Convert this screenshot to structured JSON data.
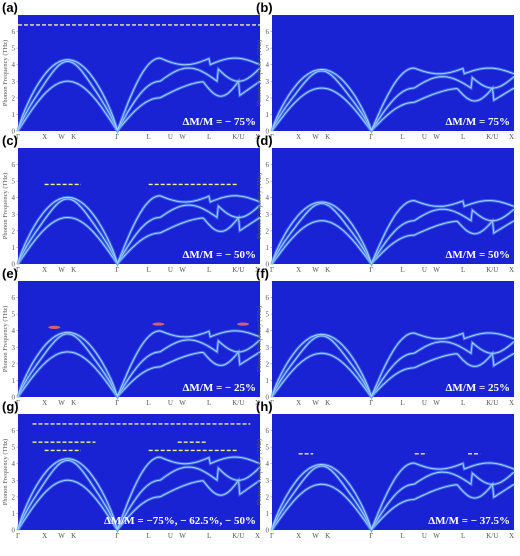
{
  "chart_data": [
    {
      "type": "line",
      "panel_label": "(a)",
      "annotation": "ΔM/M = − 75%",
      "mass_change": -0.75,
      "flat_bands": [
        {
          "x": [
            0,
            10
          ],
          "y": 6.4
        }
      ],
      "hot": false
    },
    {
      "type": "line",
      "panel_label": "(b)",
      "annotation": "ΔM/M = 75%",
      "mass_change": 0.75,
      "flat_bands": [],
      "hot": false
    },
    {
      "type": "line",
      "panel_label": "(c)",
      "annotation": "ΔM/M = − 50%",
      "mass_change": -0.5,
      "flat_bands": [
        {
          "x": [
            1.1,
            2.6
          ],
          "y": 4.8
        },
        {
          "x": [
            5.4,
            9.1
          ],
          "y": 4.8
        }
      ],
      "hot": false
    },
    {
      "type": "line",
      "panel_label": "(d)",
      "annotation": "ΔM/M = 50%",
      "mass_change": 0.5,
      "flat_bands": [],
      "hot": false
    },
    {
      "type": "line",
      "panel_label": "(e)",
      "annotation": "ΔM/M = − 25%",
      "mass_change": -0.25,
      "flat_bands": [],
      "hot": true
    },
    {
      "type": "line",
      "panel_label": "(f)",
      "annotation": "ΔM/M = 25%",
      "mass_change": 0.25,
      "flat_bands": [],
      "hot": false
    },
    {
      "type": "line",
      "panel_label": "(g)",
      "annotation": "ΔM/M = −75%, − 62.5%, − 50%",
      "mass_change": -0.75,
      "flat_bands": [
        {
          "x": [
            0.6,
            9.6
          ],
          "y": 6.4
        },
        {
          "x": [
            0.6,
            3.2
          ],
          "y": 5.3
        },
        {
          "x": [
            6.6,
            7.8
          ],
          "y": 5.3
        },
        {
          "x": [
            1.1,
            2.6
          ],
          "y": 4.8
        },
        {
          "x": [
            5.4,
            9.1
          ],
          "y": 4.8
        }
      ],
      "hot": false
    },
    {
      "type": "line",
      "panel_label": "(h)",
      "annotation": "ΔM/M = − 37.5%",
      "mass_change": -0.375,
      "flat_bands": [
        {
          "x": [
            1.1,
            1.7
          ],
          "y": 4.6
        },
        {
          "x": [
            5.9,
            6.4
          ],
          "y": 4.6
        },
        {
          "x": [
            8.1,
            8.6
          ],
          "y": 4.6
        }
      ],
      "hot": false
    }
  ],
  "axis": {
    "ylabel": "Phonon Frequency (THz)",
    "ylim": [
      0,
      7
    ],
    "yticks": [
      "0",
      "1",
      "2",
      "3",
      "4",
      "5",
      "6"
    ],
    "xlim": [
      0,
      10
    ],
    "xticks": [
      {
        "label": "Γ",
        "x": 0
      },
      {
        "label": "X",
        "x": 1.1
      },
      {
        "label": "W",
        "x": 1.8
      },
      {
        "label": "K",
        "x": 2.3
      },
      {
        "label": "Γ",
        "x": 4.1
      },
      {
        "label": "L",
        "x": 5.4
      },
      {
        "label": "U",
        "x": 6.3
      },
      {
        "label": "W",
        "x": 6.8
      },
      {
        "label": "L",
        "x": 7.9
      },
      {
        "label": "K/U",
        "x": 9.1
      },
      {
        "label": "X",
        "x": 9.9
      }
    ]
  },
  "colors": {
    "background": "#1a23d4",
    "band": "#5aa0ff",
    "band_core": "#a9d2ff",
    "flat_band": "#f3ef9a",
    "hot": "#ff6f5a"
  }
}
